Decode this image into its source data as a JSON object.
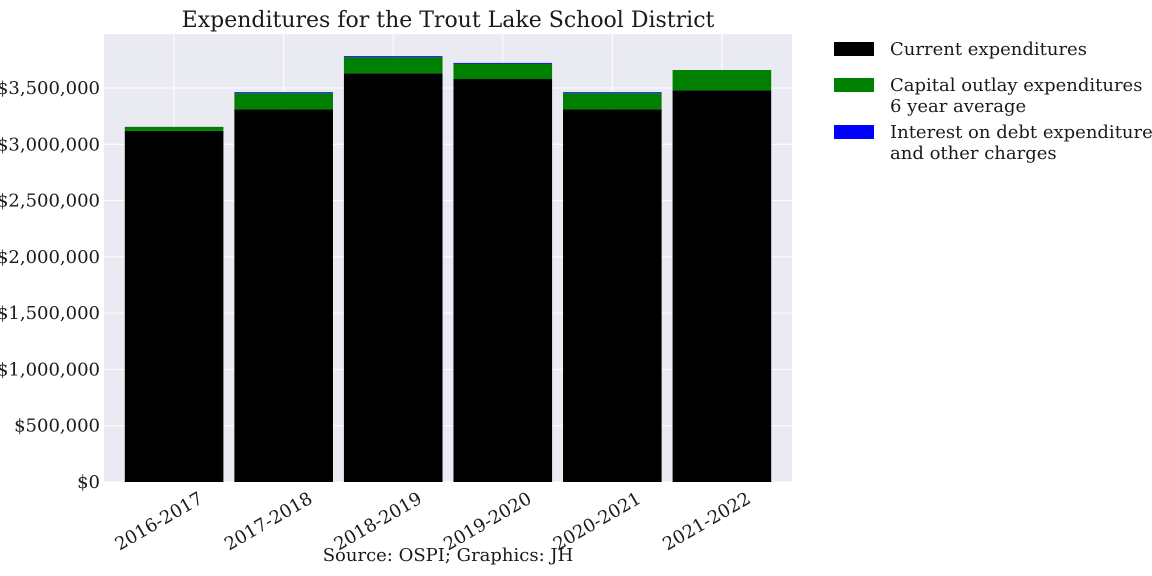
{
  "chart_data": {
    "type": "bar",
    "stacked": true,
    "title": "Expenditures for the Trout Lake School District",
    "xlabel": "Source: OSPI; Graphics: JH",
    "ylabel": "",
    "categories": [
      "2016-2017",
      "2017-2018",
      "2018-2019",
      "2019-2020",
      "2020-2021",
      "2021-2022"
    ],
    "series": [
      {
        "name": "Current expenditures",
        "color": "#000000",
        "values": [
          3120000,
          3310000,
          3630000,
          3580000,
          3310000,
          3480000
        ]
      },
      {
        "name": "Capital outlay expenditures\n6 year average",
        "color": "#008000",
        "values": [
          35000,
          145000,
          145000,
          135000,
          145000,
          180000
        ]
      },
      {
        "name": "Interest on debt expenditures\nand other charges",
        "color": "#0000ff",
        "values": [
          0,
          8000,
          8000,
          8000,
          8000,
          0
        ]
      }
    ],
    "yticks": [
      0,
      500000,
      1000000,
      1500000,
      2000000,
      2500000,
      3000000,
      3500000
    ],
    "ytick_labels": [
      "$0",
      "$500,000",
      "$1,000,000",
      "$1,500,000",
      "$2,000,000",
      "$2,500,000",
      "$3,000,000",
      "$3,500,000"
    ],
    "ylim": [
      0,
      3980000
    ],
    "grid": true,
    "legend_position": "outside-right",
    "colors": {
      "plot_background": "#eaeaf2",
      "grid": "#ffffff"
    }
  }
}
